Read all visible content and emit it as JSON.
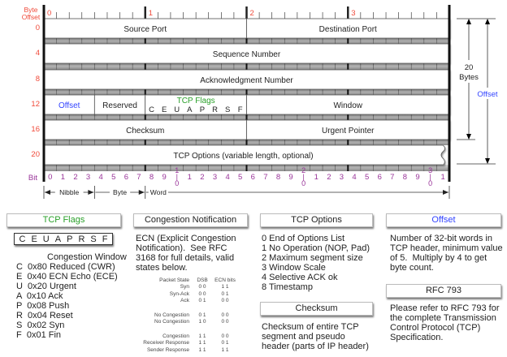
{
  "colors": {
    "offset_labels": "#f04a3a",
    "bit_labels": "#993399",
    "flags_title": "#2aa02a",
    "offset_title": "#3344ff",
    "strip": "#a8a8a8"
  },
  "header": {
    "byte_offset_label": [
      "Byte",
      "Offset"
    ],
    "byte_markers": [
      "0",
      "1",
      "2",
      "3"
    ],
    "row_offsets": [
      "0",
      "4",
      "8",
      "12",
      "16",
      "20"
    ],
    "rows": [
      [
        {
          "label": "Source Port",
          "from": 0,
          "to": 16
        },
        {
          "label": "Destination Port",
          "from": 16,
          "to": 32
        }
      ],
      [
        {
          "label": "Sequence Number",
          "from": 0,
          "to": 32
        }
      ],
      [
        {
          "label": "Acknowledgment Number",
          "from": 0,
          "to": 32
        }
      ],
      [
        {
          "label": "Offset",
          "from": 0,
          "to": 4,
          "color": "#3344ff"
        },
        {
          "label": "Reserved",
          "from": 4,
          "to": 8
        },
        {
          "label": "TCP Flags",
          "from": 8,
          "to": 16,
          "color": "#2aa02a",
          "flags": [
            "C",
            "E",
            "U",
            "A",
            "P",
            "R",
            "S",
            "F"
          ]
        },
        {
          "label": "Window",
          "from": 16,
          "to": 32
        }
      ],
      [
        {
          "label": "Checksum",
          "from": 0,
          "to": 16
        },
        {
          "label": "Urgent Pointer",
          "from": 16,
          "to": 32
        }
      ],
      [
        {
          "label": "TCP Options (variable length, optional)",
          "from": 0,
          "to": 32,
          "wavy": true
        }
      ]
    ],
    "bit_label": "Bit",
    "bits": [
      "0",
      "1",
      "2",
      "3",
      "4",
      "5",
      "6",
      "7",
      "8",
      "9",
      "1|0",
      "1",
      "2",
      "3",
      "4",
      "5",
      "6",
      "7",
      "8",
      "9",
      "2|0",
      "1",
      "2",
      "3",
      "4",
      "5",
      "6",
      "7",
      "8",
      "9",
      "3|0",
      "1"
    ],
    "spans": [
      {
        "label": "Nibble",
        "from": 0,
        "to": 4
      },
      {
        "label": "Byte",
        "from": 4,
        "to": 8
      },
      {
        "label": "Word",
        "from": 8,
        "to": 32
      }
    ],
    "size_20": [
      "20",
      "Bytes"
    ],
    "size_offset": "Offset"
  },
  "panels": {
    "flags": {
      "title": "TCP Flags",
      "letters": [
        "C",
        "E",
        "U",
        "A",
        "P",
        "R",
        "S",
        "F"
      ],
      "cw_label": "Congestion Window",
      "items": [
        "C  0x80 Reduced (CWR)",
        "E  0x40 ECN Echo (ECE)",
        "U  0x20 Urgent",
        "A  0x10 Ack",
        "P  0x08 Push",
        "R  0x04 Reset",
        "S  0x02 Syn",
        "F  0x01 Fin"
      ]
    },
    "congestion": {
      "title": "Congestion Notification",
      "text": [
        "ECN (Explicit Congestion",
        "Notification).  See RFC",
        "3168 for full details, valid",
        "states below."
      ],
      "table_headers": [
        "Packet State",
        "DSB",
        "ECN bits"
      ],
      "table_rows": [
        [
          "Syn",
          "0 0",
          "1 1"
        ],
        [
          "Syn-Ack",
          "0 0",
          "0 1"
        ],
        [
          "Ack",
          "0 1",
          "0 0"
        ],
        [
          "No Congestion",
          "0 1",
          "0 0"
        ],
        [
          "No Congestion",
          "1 0",
          "0 0"
        ],
        [
          "Congestion",
          "1 1",
          "0 0"
        ],
        [
          "Receiver Response",
          "1 1",
          "0 1"
        ],
        [
          "Sender Response",
          "1 1",
          "1 1"
        ]
      ]
    },
    "options": {
      "title": "TCP Options",
      "items": [
        "0 End of Options List",
        "1 No Operation (NOP, Pad)",
        "2 Maximum segment size",
        "3 Window Scale",
        "4 Selective ACK ok",
        "8 Timestamp"
      ]
    },
    "checksum": {
      "title": "Checksum",
      "text": [
        "Checksum of entire TCP",
        "segment and pseudo",
        "header (parts of IP header)"
      ]
    },
    "offset": {
      "title": "Offset",
      "text": [
        "Number of 32-bit words in",
        "TCP header, minimum value",
        "of 5.  Multiply by 4 to get",
        "byte count."
      ]
    },
    "rfc": {
      "title": "RFC 793",
      "text": [
        "Please refer to RFC 793 for",
        "the complete Transmission",
        "Control Protocol (TCP)",
        "Specification."
      ]
    }
  }
}
